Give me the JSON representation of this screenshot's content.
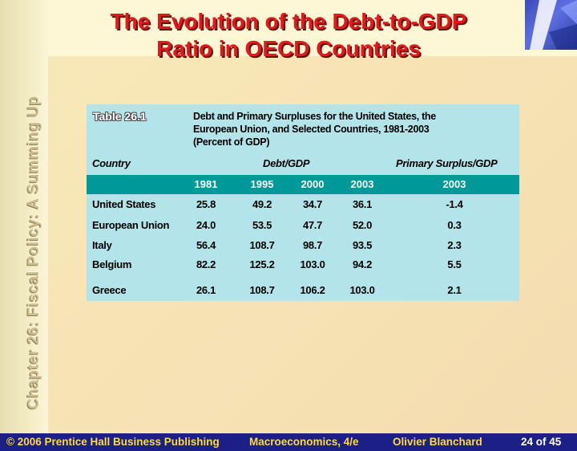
{
  "vertical_title": "Chapter 26: Fiscal Policy: A Summing Up",
  "title_line1": "The Evolution of the Debt-to-GDP",
  "title_line2": "Ratio in OECD Countries",
  "table": {
    "label": "Table 26.1",
    "caption_line1": "Debt and Primary Surpluses for the United States, the",
    "caption_line2": "European Union, and Selected Countries, 1981-2003",
    "caption_line3": "(Percent of GDP)",
    "header_country": "Country",
    "header_debt": "Debt/GDP",
    "header_surplus": "Primary Surplus/GDP",
    "years": [
      "1981",
      "1995",
      "2000",
      "2003",
      "2003"
    ],
    "rows": [
      {
        "country": "United States",
        "values": [
          "25.8",
          "49.2",
          "34.7",
          "36.1",
          "-1.4"
        ]
      },
      {
        "country": "European Union",
        "values": [
          "24.0",
          "53.5",
          "47.7",
          "52.0",
          "0.3"
        ]
      },
      {
        "country": "Italy",
        "values": [
          "56.4",
          "108.7",
          "98.7",
          "93.5",
          "2.3"
        ]
      },
      {
        "country": "Belgium",
        "values": [
          "82.2",
          "125.2",
          "103.0",
          "94.2",
          "5.5"
        ]
      },
      {
        "country": "Greece",
        "values": [
          "26.1",
          "108.7",
          "106.2",
          "103.0",
          "2.1"
        ]
      }
    ]
  },
  "footer": {
    "copyright": "© 2006 Prentice Hall Business Publishing",
    "book": "Macroeconomics, 4/e",
    "author": "Olivier Blanchard",
    "page": "24 of 45"
  },
  "colors": {
    "title": "#e01a1a",
    "table_bg": "#b3e4ea",
    "year_bar": "#009999",
    "footer_bg": "#1b1f86",
    "footer_text": "#ffd93d"
  },
  "icons": {
    "corner_logo": "abstract-logo-icon"
  }
}
